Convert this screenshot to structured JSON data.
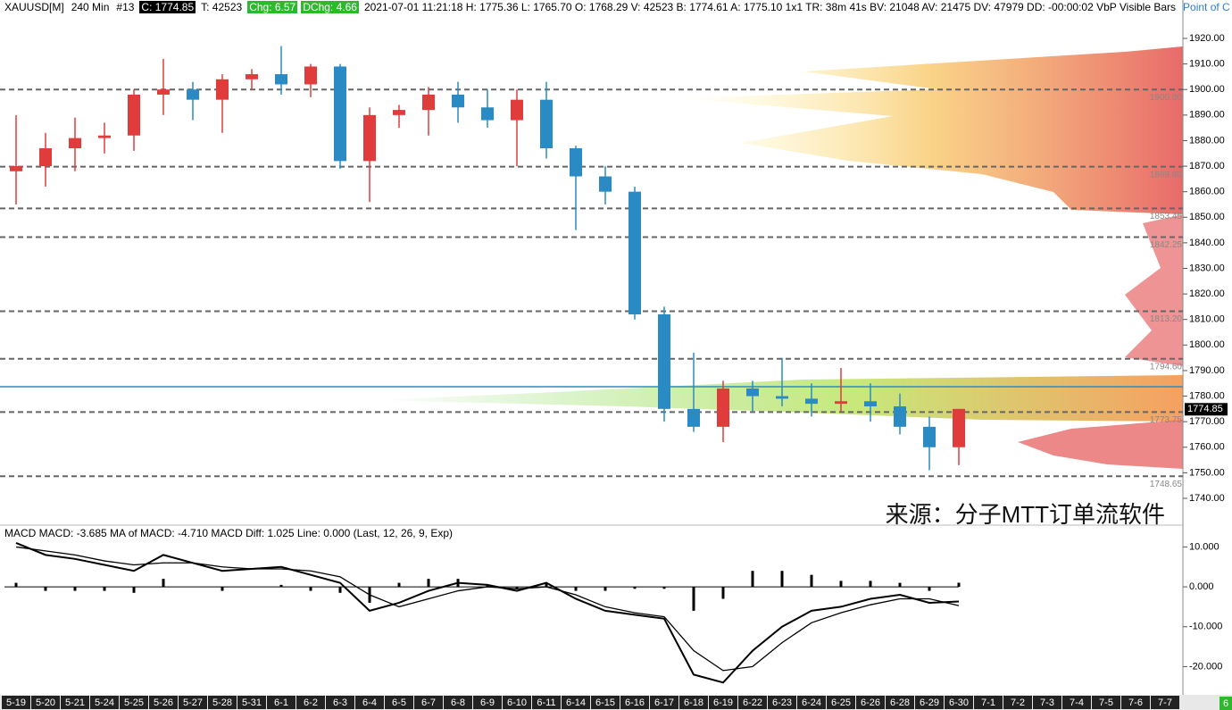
{
  "header": {
    "symbol": "XAUUSD[M]",
    "interval": "240 Min",
    "number": "#13",
    "close": "C: 1774.85",
    "ticks": "T: 42523",
    "chg": "Chg: 6.57",
    "dchg": "DChg: 4.66",
    "info": "2021-07-01 11:21:18 H: 1775.36 L: 1765.70 O: 1768.29 V: 42523 B: 1774.61 A: 1775.10 1x1 TR: 38m 41s BV: 21048 AV: 21475 DV: 47979 DD: -00:00:02 VbP Visible Bars",
    "link": "Point of C"
  },
  "watermark": "来源：分子MTT订单流软件",
  "corner_badge": "6",
  "chart_data": [
    {
      "type": "candlestick",
      "categories": [
        "5-19",
        "5-20",
        "5-21",
        "5-24",
        "5-25",
        "5-26",
        "5-27",
        "5-28",
        "5-31",
        "6-1",
        "6-2",
        "6-3",
        "6-4",
        "6-5",
        "6-7",
        "6-8",
        "6-9",
        "6-10",
        "6-11",
        "6-14",
        "6-15",
        "6-16",
        "6-17",
        "6-18",
        "6-19",
        "6-22",
        "6-23",
        "6-24",
        "6-25",
        "6-26",
        "6-28",
        "6-29",
        "6-30",
        "7-1",
        "7-2",
        "7-3",
        "7-4",
        "7-5",
        "7-6",
        "7-7"
      ],
      "open": [
        1868,
        1870,
        1877,
        1881,
        1882,
        1898,
        1900,
        1896,
        1904,
        1906,
        1902,
        1909,
        1872,
        1890,
        1892,
        1898,
        1893,
        1888,
        1896,
        1877,
        1866,
        1860,
        1812,
        1775,
        1768,
        1783,
        1780,
        1779,
        1777,
        1778,
        1776,
        1768,
        1760,
        null,
        null,
        null,
        null,
        null,
        null,
        null
      ],
      "high": [
        1890,
        1883,
        1889,
        1887,
        1900,
        1912,
        1903,
        1906,
        1908,
        1917,
        1910,
        1910,
        1893,
        1894,
        1901,
        1903,
        1900,
        1900,
        1903,
        1878,
        1870,
        1862,
        1815,
        1797,
        1786,
        1786,
        1795,
        1785,
        1791,
        1785,
        1781,
        1772,
        1775,
        null,
        null,
        null,
        null,
        null,
        null,
        null
      ],
      "low": [
        1855,
        1862,
        1868,
        1875,
        1876,
        1890,
        1888,
        1883,
        1900,
        1898,
        1897,
        1869,
        1856,
        1885,
        1882,
        1887,
        1885,
        1870,
        1873,
        1845,
        1855,
        1810,
        1770,
        1766,
        1762,
        1774,
        1776,
        1772,
        1774,
        1770,
        1765,
        1751,
        1753,
        null,
        null,
        null,
        null,
        null,
        null,
        null
      ],
      "close": [
        1870,
        1877,
        1881,
        1882,
        1898,
        1900,
        1896,
        1904,
        1906,
        1902,
        1909,
        1872,
        1890,
        1892,
        1898,
        1893,
        1888,
        1896,
        1877,
        1866,
        1860,
        1812,
        1775,
        1768,
        1783,
        1780,
        1779,
        1777,
        1778,
        1776,
        1768,
        1760,
        1775,
        null,
        null,
        null,
        null,
        null,
        null,
        null
      ],
      "up_color": "#e03c3c",
      "down_color": "#2a8bc4",
      "ylim": [
        1730.56,
        1935.03
      ],
      "yticks": [
        {
          "value": 1740,
          "label": "1740.00"
        },
        {
          "value": 1750,
          "label": "1750.00"
        },
        {
          "value": 1760,
          "label": "1760.00"
        },
        {
          "value": 1770,
          "label": "1770.00"
        },
        {
          "value": 1780,
          "label": "1780.00"
        },
        {
          "value": 1790,
          "label": "1790.00"
        },
        {
          "value": 1800,
          "label": "1800.00"
        },
        {
          "value": 1810,
          "label": "1810.00"
        },
        {
          "value": 1820,
          "label": "1820.00"
        },
        {
          "value": 1830,
          "label": "1830.00"
        },
        {
          "value": 1840,
          "label": "1840.00"
        },
        {
          "value": 1850,
          "label": "1850.00"
        },
        {
          "value": 1860,
          "label": "1860.00"
        },
        {
          "value": 1870,
          "label": "1870.00"
        },
        {
          "value": 1880,
          "label": "1880.00"
        },
        {
          "value": 1890,
          "label": "1890.00"
        },
        {
          "value": 1900,
          "label": "1900.00"
        },
        {
          "value": 1910,
          "label": "1910.00"
        },
        {
          "value": 1920,
          "label": "1920.00"
        }
      ],
      "levels": [
        {
          "value": 1900,
          "label": "1900.00"
        },
        {
          "value": 1869.8,
          "label": "1869.80"
        },
        {
          "value": 1853.45,
          "label": "1853.45"
        },
        {
          "value": 1842.25,
          "label": "1842.25"
        },
        {
          "value": 1813.2,
          "label": "1813.20"
        },
        {
          "value": 1794.6,
          "label": "1794.60"
        },
        {
          "value": 1773.75,
          "label": "1773.75"
        },
        {
          "value": 1748.65,
          "label": "1748.65"
        }
      ],
      "current": {
        "value": 1774.85,
        "label": "1774.85"
      }
    },
    {
      "type": "macd",
      "title": "MACD  MACD: -3.685  MA of MACD: -4.710  MACD Diff: 1.025  Line: 0.000  (Last, 12, 26, 9, Exp)",
      "series": [
        {
          "name": "MACD",
          "color": "#000000",
          "values": [
            11,
            8,
            7,
            5.5,
            4,
            8,
            6,
            4,
            4.5,
            5,
            3,
            1,
            -6,
            -4,
            -1,
            1,
            0.5,
            -1,
            1,
            -3,
            -6,
            -7,
            -8,
            -22,
            -24,
            -16,
            -10,
            -6,
            -5,
            -3,
            -2,
            -4,
            -3.685,
            null,
            null,
            null,
            null,
            null,
            null,
            null
          ]
        },
        {
          "name": "MA of MACD",
          "color": "#000000",
          "values": [
            10,
            9,
            8,
            6.5,
            5.5,
            6,
            6,
            5,
            4.5,
            4.5,
            4,
            2.5,
            -2,
            -5,
            -3,
            -1,
            0,
            -0.5,
            0,
            -2,
            -5,
            -6.5,
            -7.5,
            -16,
            -21,
            -20,
            -14,
            -9,
            -6.5,
            -4.5,
            -3,
            -3,
            -4.71,
            null,
            null,
            null,
            null,
            null,
            null,
            null
          ]
        },
        {
          "name": "MACD Diff",
          "color": "#000000",
          "values": [
            1,
            -1,
            -1,
            -1,
            -1.5,
            2,
            0,
            -1,
            0,
            0.5,
            -1,
            -1.5,
            -4,
            1,
            2,
            2,
            0.5,
            -0.5,
            1,
            -1,
            -1,
            -0.5,
            -0.5,
            -6,
            -3,
            4,
            4,
            3,
            1.5,
            1.5,
            1,
            -1,
            1.025,
            null,
            null,
            null,
            null,
            null,
            null,
            null
          ]
        }
      ],
      "ylim": [
        -26.4,
        13.9
      ],
      "yticks": [
        {
          "value": 10,
          "label": "10.000"
        },
        {
          "value": 0,
          "label": "0.000"
        },
        {
          "value": -10,
          "label": "-10.000"
        },
        {
          "value": -20,
          "label": "-20.000"
        }
      ]
    }
  ]
}
